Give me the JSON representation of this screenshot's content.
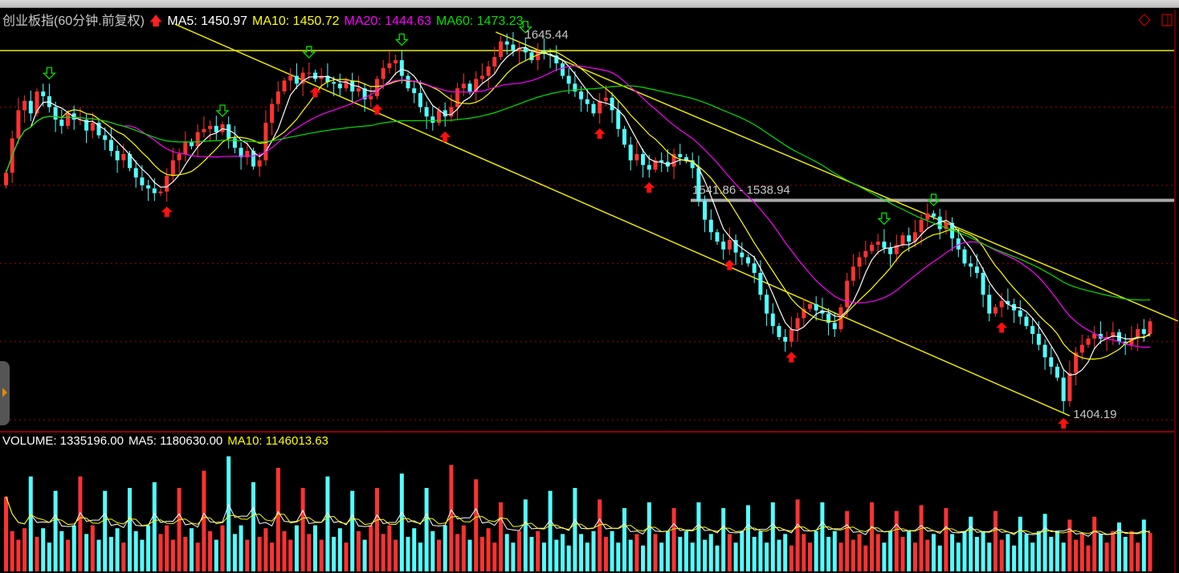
{
  "header": {
    "title": "创业板指(60分钟.前复权)",
    "ma5": "MA5: 1450.97",
    "ma10": "MA10: 1450.72",
    "ma20": "MA20: 1444.63",
    "ma60": "MA60: 1473.23"
  },
  "volume_header": {
    "volume": "VOLUME: 1335196.00",
    "ma5": "MA5: 1180630.00",
    "ma10": "MA10: 1146013.63"
  },
  "colors": {
    "up": "#ff3232",
    "down": "#54ffff",
    "ma5": "#ffffff",
    "ma10": "#ffff00",
    "ma20": "#ff00ff",
    "ma60": "#00e000",
    "trend": "#e8e800",
    "panel_border": "#c00000"
  },
  "icons": [
    "up-arrow-icon",
    "diamond-icon",
    "split-panel-icon",
    "expand-tab-icon"
  ],
  "chart_data": {
    "type": "candlestick",
    "title": "创业板指(60分钟.前复权)",
    "ylim": [
      1392.9,
      1649.0
    ],
    "grid": true,
    "close": [
      1558,
      1580,
      1598,
      1604,
      1596,
      1610,
      1607,
      1600,
      1592,
      1588,
      1596,
      1592,
      1592,
      1585,
      1590,
      1582,
      1579,
      1572,
      1566,
      1570,
      1561,
      1555,
      1550,
      1548,
      1545,
      1546,
      1556,
      1566,
      1570,
      1578,
      1575,
      1584,
      1586,
      1588,
      1584,
      1589,
      1580,
      1574,
      1568,
      1572,
      1562,
      1566,
      1590,
      1602,
      1610,
      1617,
      1620,
      1615,
      1622,
      1622,
      1618,
      1620,
      1616,
      1615,
      1612,
      1617,
      1610,
      1612,
      1605,
      1607,
      1618,
      1625,
      1628,
      1630,
      1620,
      1612,
      1609,
      1600,
      1594,
      1590,
      1598,
      1594,
      1600,
      1612,
      1615,
      1610,
      1618,
      1620,
      1626,
      1632,
      1642,
      1640,
      1636,
      1638,
      1635,
      1630,
      1636,
      1634,
      1633,
      1628,
      1620,
      1615,
      1610,
      1605,
      1602,
      1596,
      1604,
      1606,
      1598,
      1586,
      1576,
      1566,
      1570,
      1563,
      1560,
      1566,
      1565,
      1562,
      1570,
      1568,
      1566,
      1561,
      1540,
      1528,
      1520,
      1514,
      1509,
      1515,
      1507,
      1504,
      1500,
      1494,
      1480,
      1468,
      1460,
      1453,
      1450,
      1458,
      1465,
      1471,
      1474,
      1470,
      1468,
      1462,
      1458,
      1472,
      1489,
      1498,
      1504,
      1508,
      1512,
      1514,
      1510,
      1506,
      1512,
      1518,
      1514,
      1520,
      1528,
      1532,
      1530,
      1522,
      1526,
      1516,
      1509,
      1500,
      1498,
      1494,
      1480,
      1468,
      1472,
      1476,
      1474,
      1470,
      1466,
      1460,
      1455,
      1448,
      1440,
      1434,
      1427,
      1412,
      1430,
      1443,
      1448,
      1452,
      1455,
      1452,
      1453,
      1456,
      1450,
      1448,
      1452,
      1458,
      1455,
      1463
    ],
    "volume": [
      2600000,
      1400000,
      1100000,
      1500000,
      3300000,
      1200000,
      1500000,
      1000000,
      2800000,
      1400000,
      1100000,
      1600000,
      3300000,
      1300000,
      1600000,
      1100000,
      2800000,
      1200000,
      1500000,
      1000000,
      2900000,
      1400000,
      1100000,
      1600000,
      3100000,
      1300000,
      1600000,
      1100000,
      2900000,
      1200000,
      1500000,
      1000000,
      3500000,
      1400000,
      1100000,
      1600000,
      4000000,
      1300000,
      1600000,
      1100000,
      3100000,
      1200000,
      1500000,
      1000000,
      3600000,
      1400000,
      1100000,
      1600000,
      2900000,
      1300000,
      1600000,
      1100000,
      3300000,
      1200000,
      1500000,
      1000000,
      2800000,
      1400000,
      1100000,
      1600000,
      2900000,
      1300000,
      1600000,
      1100000,
      3400000,
      1200000,
      1500000,
      1000000,
      2900000,
      1400000,
      1100000,
      1600000,
      3700000,
      1300000,
      1600000,
      1100000,
      3200000,
      1200000,
      1500000,
      1000000,
      2400000,
      1300000,
      1000000,
      1400000,
      2500000,
      1200000,
      1400000,
      1000000,
      2800000,
      1100000,
      1300000,
      900000,
      2900000,
      1300000,
      1000000,
      1400000,
      2500000,
      1200000,
      1400000,
      1000000,
      2200000,
      1100000,
      1300000,
      900000,
      2400000,
      1300000,
      1000000,
      1400000,
      2200000,
      1200000,
      1400000,
      1000000,
      2400000,
      1100000,
      1300000,
      900000,
      2200000,
      1300000,
      1000000,
      1400000,
      2300000,
      1200000,
      1400000,
      1000000,
      2400000,
      1100000,
      1300000,
      900000,
      2500000,
      1300000,
      1000000,
      1400000,
      2400000,
      1200000,
      1400000,
      1000000,
      2100000,
      1100000,
      1300000,
      900000,
      2400000,
      1300000,
      1000000,
      1400000,
      2100000,
      1200000,
      1400000,
      1000000,
      2300000,
      1100000,
      1300000,
      900000,
      2200000,
      1300000,
      1000000,
      1400000,
      1900000,
      1200000,
      1400000,
      1000000,
      2100000,
      1100000,
      1300000,
      900000,
      1900000,
      1300000,
      1000000,
      1400000,
      2000000,
      1200000,
      1400000,
      1000000,
      1800000,
      1100000,
      1300000,
      900000,
      1900000,
      1300000,
      1000000,
      1400000,
      1700000,
      1200000,
      1400000,
      1000000,
      1800000,
      1335196
    ],
    "annotations": {
      "high_label": "1645.44",
      "low_label": "1404.19",
      "range_label": "1541.86 - 1538.94",
      "range_line_price": 1540.4,
      "horizontal_line_price": 1636.2
    },
    "trendlines": [
      {
        "from": [
          27.3,
          1653.1
        ],
        "to": [
          172,
          1402.6
        ]
      },
      {
        "from": [
          79.2,
          1648.0
        ],
        "to": [
          189.5,
          1463.2
        ]
      }
    ],
    "buy_signals": [
      26,
      50,
      60,
      71,
      96,
      104,
      117,
      127,
      161,
      171
    ],
    "sell_signals": [
      7,
      35,
      49,
      64,
      84,
      142,
      150
    ]
  }
}
